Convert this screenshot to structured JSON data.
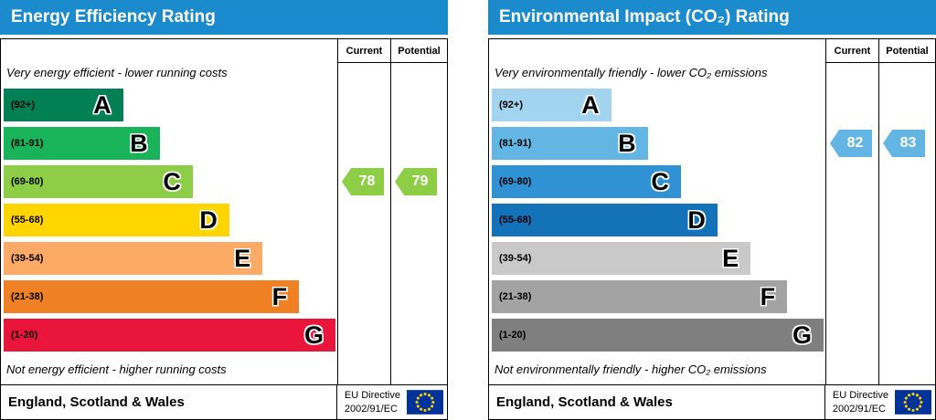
{
  "charts": [
    {
      "title": "Energy Efficiency Rating",
      "columns": [
        "Current",
        "Potential"
      ],
      "top_note": "Very energy efficient - lower running costs",
      "bottom_note": "Not energy efficient - higher running costs",
      "bands": [
        {
          "range": "(92+)",
          "letter": "A",
          "color": "#008054",
          "width_pct": 36
        },
        {
          "range": "(81-91)",
          "letter": "B",
          "color": "#19b459",
          "width_pct": 47
        },
        {
          "range": "(69-80)",
          "letter": "C",
          "color": "#8dce46",
          "width_pct": 57
        },
        {
          "range": "(55-68)",
          "letter": "D",
          "color": "#ffd500",
          "width_pct": 68
        },
        {
          "range": "(39-54)",
          "letter": "E",
          "color": "#fcaa65",
          "width_pct": 78
        },
        {
          "range": "(21-38)",
          "letter": "F",
          "color": "#ef8023",
          "width_pct": 89
        },
        {
          "range": "(1-20)",
          "letter": "G",
          "color": "#e9153b",
          "width_pct": 100
        }
      ],
      "current": {
        "value": "78",
        "band_index": 2,
        "color": "#8dce46"
      },
      "potential": {
        "value": "79",
        "band_index": 2,
        "color": "#8dce46"
      },
      "footer": {
        "region": "England, Scotland & Wales",
        "directive_line1": "EU Directive",
        "directive_line2": "2002/91/EC"
      }
    },
    {
      "title": "Environmental Impact (CO₂) Rating",
      "columns": [
        "Current",
        "Potential"
      ],
      "top_note": "Very environmentally friendly - lower CO₂ emissions",
      "bottom_note": "Not environmentally friendly - higher CO₂ emissions",
      "bands": [
        {
          "range": "(92+)",
          "letter": "A",
          "color": "#a2d4f0",
          "width_pct": 36
        },
        {
          "range": "(81-91)",
          "letter": "B",
          "color": "#63b6e4",
          "width_pct": 47
        },
        {
          "range": "(69-80)",
          "letter": "C",
          "color": "#3092d2",
          "width_pct": 57
        },
        {
          "range": "(55-68)",
          "letter": "D",
          "color": "#1372b8",
          "width_pct": 68
        },
        {
          "range": "(39-54)",
          "letter": "E",
          "color": "#c9c9c9",
          "width_pct": 78
        },
        {
          "range": "(21-38)",
          "letter": "F",
          "color": "#a3a3a3",
          "width_pct": 89
        },
        {
          "range": "(1-20)",
          "letter": "G",
          "color": "#7f7f7f",
          "width_pct": 100
        }
      ],
      "current": {
        "value": "82",
        "band_index": 1,
        "color": "#63b6e4"
      },
      "potential": {
        "value": "83",
        "band_index": 1,
        "color": "#63b6e4"
      },
      "footer": {
        "region": "England, Scotland & Wales",
        "directive_line1": "EU Directive",
        "directive_line2": "2002/91/EC"
      }
    }
  ],
  "chart_data": [
    {
      "type": "bar",
      "title": "Energy Efficiency Rating",
      "categories": [
        "A (92+)",
        "B (81-91)",
        "C (69-80)",
        "D (55-68)",
        "E (39-54)",
        "F (21-38)",
        "G (1-20)"
      ],
      "band_colors": [
        "#008054",
        "#19b459",
        "#8dce46",
        "#ffd500",
        "#fcaa65",
        "#ef8023",
        "#e9153b"
      ],
      "current": 78,
      "current_band": "C",
      "potential": 79,
      "potential_band": "C",
      "scale": [
        1,
        100
      ],
      "region": "England, Scotland & Wales",
      "directive": "EU Directive 2002/91/EC"
    },
    {
      "type": "bar",
      "title": "Environmental Impact (CO₂) Rating",
      "categories": [
        "A (92+)",
        "B (81-91)",
        "C (69-80)",
        "D (55-68)",
        "E (39-54)",
        "F (21-38)",
        "G (1-20)"
      ],
      "band_colors": [
        "#a2d4f0",
        "#63b6e4",
        "#3092d2",
        "#1372b8",
        "#c9c9c9",
        "#a3a3a3",
        "#7f7f7f"
      ],
      "current": 82,
      "current_band": "B",
      "potential": 83,
      "potential_band": "B",
      "scale": [
        1,
        100
      ],
      "region": "England, Scotland & Wales",
      "directive": "EU Directive 2002/91/EC"
    }
  ]
}
